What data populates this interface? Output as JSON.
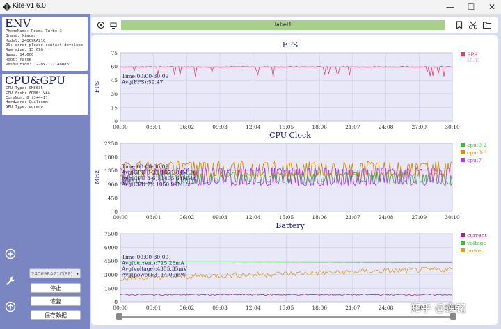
{
  "window": {
    "title": "Kite-v1.6.0",
    "minimize": "—",
    "maximize": "☐",
    "close": "✕"
  },
  "env": {
    "title": "ENV",
    "lines": [
      "PhoneName: Redmi Turbo 3",
      "Brand: Xiaomi",
      "Model: 24069RA21C",
      "OS: error please contact develope",
      "Ram size: 15.69G",
      "Swap: 14.66G",
      "Root: false",
      "Resolution: 1220x2712 480dpi"
    ]
  },
  "cpu_gpu": {
    "title": "CPU&GPU",
    "lines": [
      "CPU Type: SM8635",
      "CPU Arch: ARM64_V8A",
      "CoreNum: 8 (3+4+1)",
      "Hardware: Qualcomm",
      "GPU Type: adreno"
    ]
  },
  "controls": {
    "device_select": "24069RA21C(8F)",
    "stop": "停止",
    "resume": "恢复",
    "save": "保存数据"
  },
  "toolbar": {
    "label": "label1"
  },
  "watermark": "知乎 @逆铭",
  "colors": {
    "fps": "#e0406a",
    "cpu0": "#3cba3c",
    "cpu3": "#d88a00",
    "cpu7": "#b040e0",
    "current": "#b0208a",
    "voltage": "#3cba3c",
    "power": "#d4a020",
    "plot_bg": "#e8e8f8"
  },
  "chart_data": [
    {
      "type": "line",
      "title": "FPS",
      "ylabel": "FPS",
      "xlabel": "",
      "x_ticks": [
        "00:00",
        "03:01",
        "06:02",
        "09:03",
        "12:04",
        "15:05",
        "18:06",
        "21:07",
        "24:08",
        "27:09",
        "30:10"
      ],
      "y_ticks": [
        "0",
        "15",
        "30",
        "45",
        "60",
        "75"
      ],
      "ylim": [
        0,
        75
      ],
      "annotations": [
        "Time:00:00-30:09",
        "Avg(FPS):59.47"
      ],
      "legend": [
        {
          "name": "FPS",
          "value": "59.63"
        }
      ],
      "series": [
        {
          "name": "FPS",
          "base": 59.5,
          "min_dip": 48
        }
      ]
    },
    {
      "type": "line",
      "title": "CPU Clock",
      "ylabel": "MHz",
      "xlabel": "",
      "x_ticks": [
        "00:00",
        "03:01",
        "06:02",
        "09:03",
        "12:04",
        "15:05",
        "18:06",
        "21:07",
        "24:08",
        "27:09",
        "30:10"
      ],
      "y_ticks": [
        "0",
        "450",
        "900",
        "1350",
        "1800",
        "2250"
      ],
      "ylim": [
        0,
        2250
      ],
      "annotations": [
        "Time:00:00-30:09",
        "Avg(CPU 0-2): 1071.84MHz",
        "Avg(CPU 3-6): 1405.64MHz",
        "Avg(CPU 7): 1050.99MHz"
      ],
      "legend": [
        {
          "name": "cpu:0-2"
        },
        {
          "name": "cpu:3-6"
        },
        {
          "name": "cpu:7"
        }
      ],
      "series": [
        {
          "name": "cpu:0-2",
          "low": 900,
          "high": 1300
        },
        {
          "name": "cpu:3-6",
          "low": 1150,
          "high": 1650
        },
        {
          "name": "cpu:7",
          "low": 850,
          "high": 1450
        }
      ]
    },
    {
      "type": "line",
      "title": "Battery",
      "ylabel": "",
      "xlabel": "",
      "x_ticks": [
        "00:00",
        "03:01",
        "06:02",
        "09:03",
        "12:04",
        "15:05",
        "18:06",
        "21:07",
        "24:08",
        "27:09",
        "30:10"
      ],
      "y_ticks": [
        "0",
        "1500",
        "3000",
        "4500",
        "6000",
        "7500"
      ],
      "ylim": [
        0,
        7500
      ],
      "annotations": [
        "Time:00:00-30:09",
        "Avg(current):715.28mA",
        "Avg(voltage):4355.35mV",
        "Avg(power):3114.09mW"
      ],
      "legend": [
        {
          "name": "current"
        },
        {
          "name": "voltage"
        },
        {
          "name": "power"
        }
      ],
      "series": [
        {
          "name": "current",
          "base": 800,
          "amp": 150
        },
        {
          "name": "voltage",
          "start": 4420,
          "end": 4330
        },
        {
          "name": "power",
          "start": 2600,
          "end": 3600,
          "amp": 300
        }
      ]
    }
  ]
}
